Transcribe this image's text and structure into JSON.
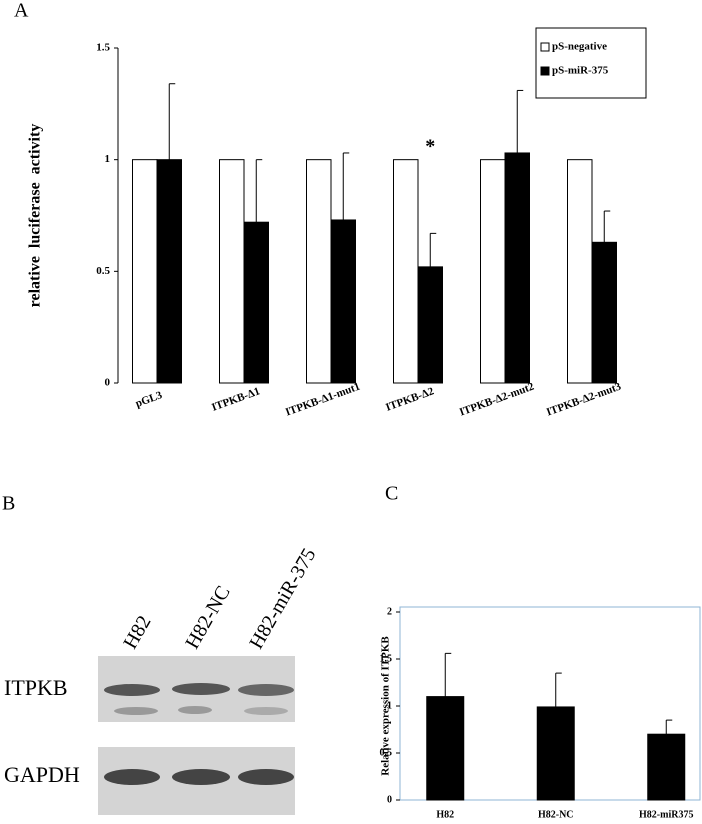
{
  "panel_labels": [
    "A",
    "B",
    "C"
  ],
  "blot": {
    "lanes": [
      "H82",
      "H82-NC",
      "H82-miR-375"
    ],
    "rows": [
      "ITPKB",
      "GAPDH"
    ]
  },
  "chart_data": [
    {
      "type": "bar",
      "ylabel": "relative luciferase activity",
      "categories": [
        "pGL3",
        "ITPKB-Δ1",
        "ITPKB-Δ1-mut1",
        "ITPKB-Δ2",
        "ITPKB-Δ2-mut2",
        "ITPKB-Δ2-mut3"
      ],
      "series": [
        {
          "name": "pS-negative",
          "color": "#ffffff",
          "values": [
            1,
            1,
            1,
            1,
            1,
            1
          ]
        },
        {
          "name": "pS-miR-375",
          "color": "#000000",
          "values": [
            1,
            0.72,
            0.73,
            0.52,
            1.03,
            0.63
          ],
          "errors": [
            0.34,
            0.28,
            0.3,
            0.15,
            0.28,
            0.14
          ]
        }
      ],
      "annotations": [
        {
          "text": "*",
          "category": "ITPKB-Δ2"
        }
      ],
      "ylim": [
        0,
        1.5
      ],
      "yticks": [
        0,
        0.5,
        1,
        1.5
      ],
      "legend": "upper right",
      "grid": false
    },
    {
      "type": "bar",
      "ylabel": "Relative expression of ITPKB",
      "categories": [
        "H82",
        "H82-NC",
        "H82-miR375"
      ],
      "series": [
        {
          "color": "#000000",
          "values": [
            1.1,
            0.99,
            0.7
          ],
          "errors": [
            0.46,
            0.36,
            0.15
          ]
        }
      ],
      "ylim": [
        0,
        2
      ],
      "yticks": [
        0,
        0.5,
        1,
        1.5,
        2
      ],
      "grid": false
    }
  ]
}
